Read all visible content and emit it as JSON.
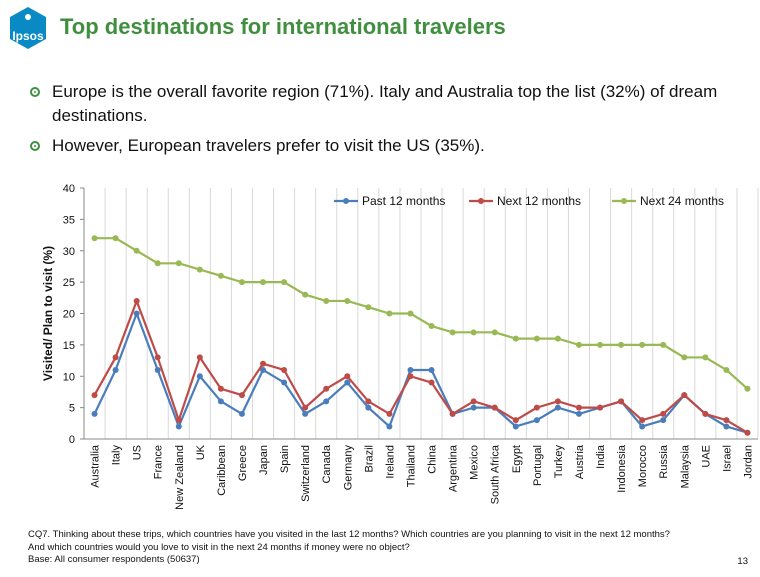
{
  "logo": {
    "text": "Ipsos",
    "color": "#0a8ac4"
  },
  "title": "Top destinations for international travelers",
  "bullets": [
    "Europe is the overall favorite region (71%). Italy and Australia top the list (32%) of dream destinations.",
    "However, European travelers prefer to visit the US (35%)."
  ],
  "chart_data": {
    "type": "line",
    "ylabel": "Visited/ Plan to visit (%)",
    "ylim": [
      0,
      40
    ],
    "yticks": [
      0,
      5,
      10,
      15,
      20,
      25,
      30,
      35,
      40
    ],
    "grid": "vertical",
    "legend_position": "top-right",
    "categories": [
      "Australia",
      "Italy",
      "US",
      "France",
      "New Zealand",
      "UK",
      "Caribbean",
      "Greece",
      "Japan",
      "Spain",
      "Switzerland",
      "Canada",
      "Germany",
      "Brazil",
      "Ireland",
      "Thailand",
      "China",
      "Argentina",
      "Mexico",
      "South Africa",
      "Egypt",
      "Portugal",
      "Turkey",
      "Austria",
      "India",
      "Indonesia",
      "Morocco",
      "Russia",
      "Malaysia",
      "UAE",
      "Israel",
      "Jordan"
    ],
    "series": [
      {
        "name": "Past 12 months",
        "color": "#4a7ebb",
        "values": [
          4,
          11,
          20,
          11,
          2,
          10,
          6,
          4,
          11,
          9,
          4,
          6,
          9,
          5,
          2,
          11,
          11,
          4,
          5,
          5,
          2,
          3,
          5,
          4,
          5,
          6,
          2,
          3,
          7,
          4,
          2,
          1
        ]
      },
      {
        "name": "Next 12 months",
        "color": "#be4b48",
        "values": [
          7,
          13,
          22,
          13,
          3,
          13,
          8,
          7,
          12,
          11,
          5,
          8,
          10,
          6,
          4,
          10,
          9,
          4,
          6,
          5,
          3,
          5,
          6,
          5,
          5,
          6,
          3,
          4,
          7,
          4,
          3,
          1
        ]
      },
      {
        "name": "Next 24 months",
        "color": "#98b954",
        "values": [
          32,
          32,
          30,
          28,
          28,
          27,
          26,
          25,
          25,
          25,
          23,
          22,
          22,
          21,
          20,
          20,
          18,
          17,
          17,
          17,
          16,
          16,
          16,
          15,
          15,
          15,
          15,
          15,
          13,
          13,
          11,
          8
        ]
      }
    ]
  },
  "footnote": [
    "CQ7. Thinking about these trips, which countries have you visited in the last 12 months? Which countries are you planning to visit in the next 12 months?",
    "And which countries would you love to visit in the next 24 months if money were no object?",
    "Base: All consumer respondents (50637)"
  ],
  "page_number": "13"
}
